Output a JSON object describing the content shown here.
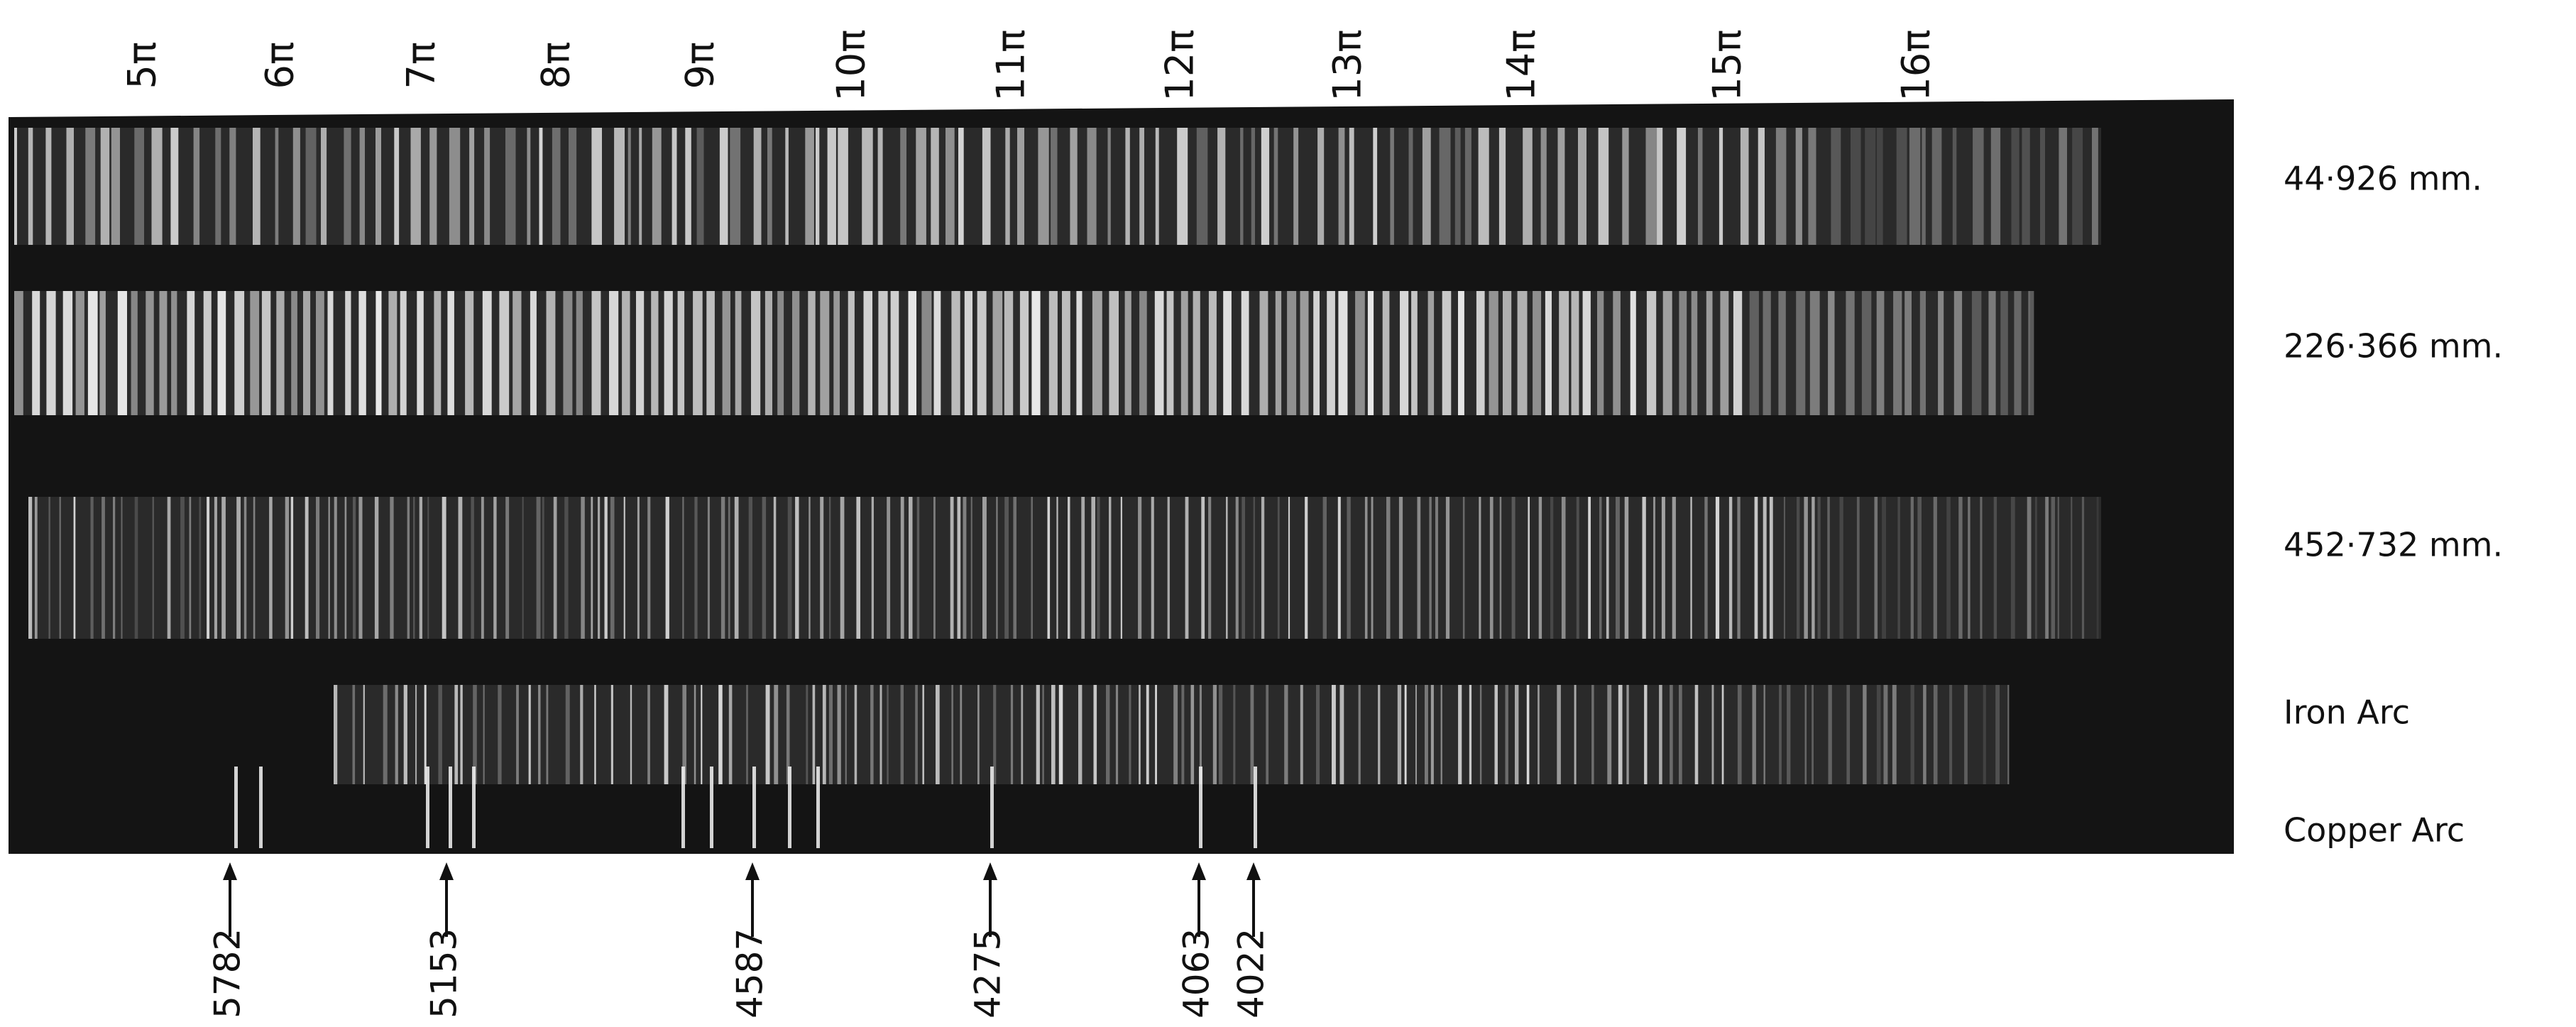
{
  "orders": [
    "5π",
    "6π",
    "7π",
    "8π",
    "9π",
    "10π",
    "11π",
    "12π",
    "13π",
    "14π",
    "15π",
    "16π"
  ],
  "spectra": [
    "44·926 mm.",
    "226·366 mm.",
    "452·732 mm.",
    "Iron Arc",
    "Copper Arc"
  ],
  "wavelengths": [
    "5782",
    "5153",
    "4587",
    "4275",
    "4063",
    "4022"
  ]
}
